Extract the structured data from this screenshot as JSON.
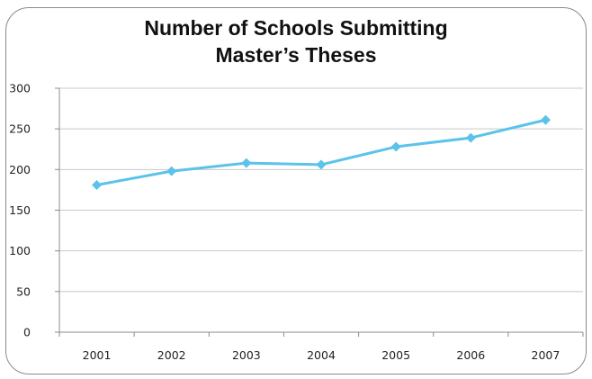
{
  "chart_data": {
    "type": "line",
    "title_lines": [
      "Number of Schools Submitting",
      "Master’s Theses"
    ],
    "xlabel": "",
    "ylabel": "",
    "categories": [
      "2001",
      "2002",
      "2003",
      "2004",
      "2005",
      "2006",
      "2007"
    ],
    "series": [
      {
        "values": [
          181,
          198,
          208,
          206,
          228,
          239,
          261
        ]
      }
    ],
    "ylim": [
      0,
      300
    ],
    "yticks": [
      0,
      50,
      100,
      150,
      200,
      250,
      300
    ],
    "grid": true,
    "legend": "none",
    "colors": {
      "line": "#5bc3ea",
      "marker": "#5bc3ea",
      "grid": "#c8c8c8",
      "axis": "#8c8c8c"
    }
  }
}
